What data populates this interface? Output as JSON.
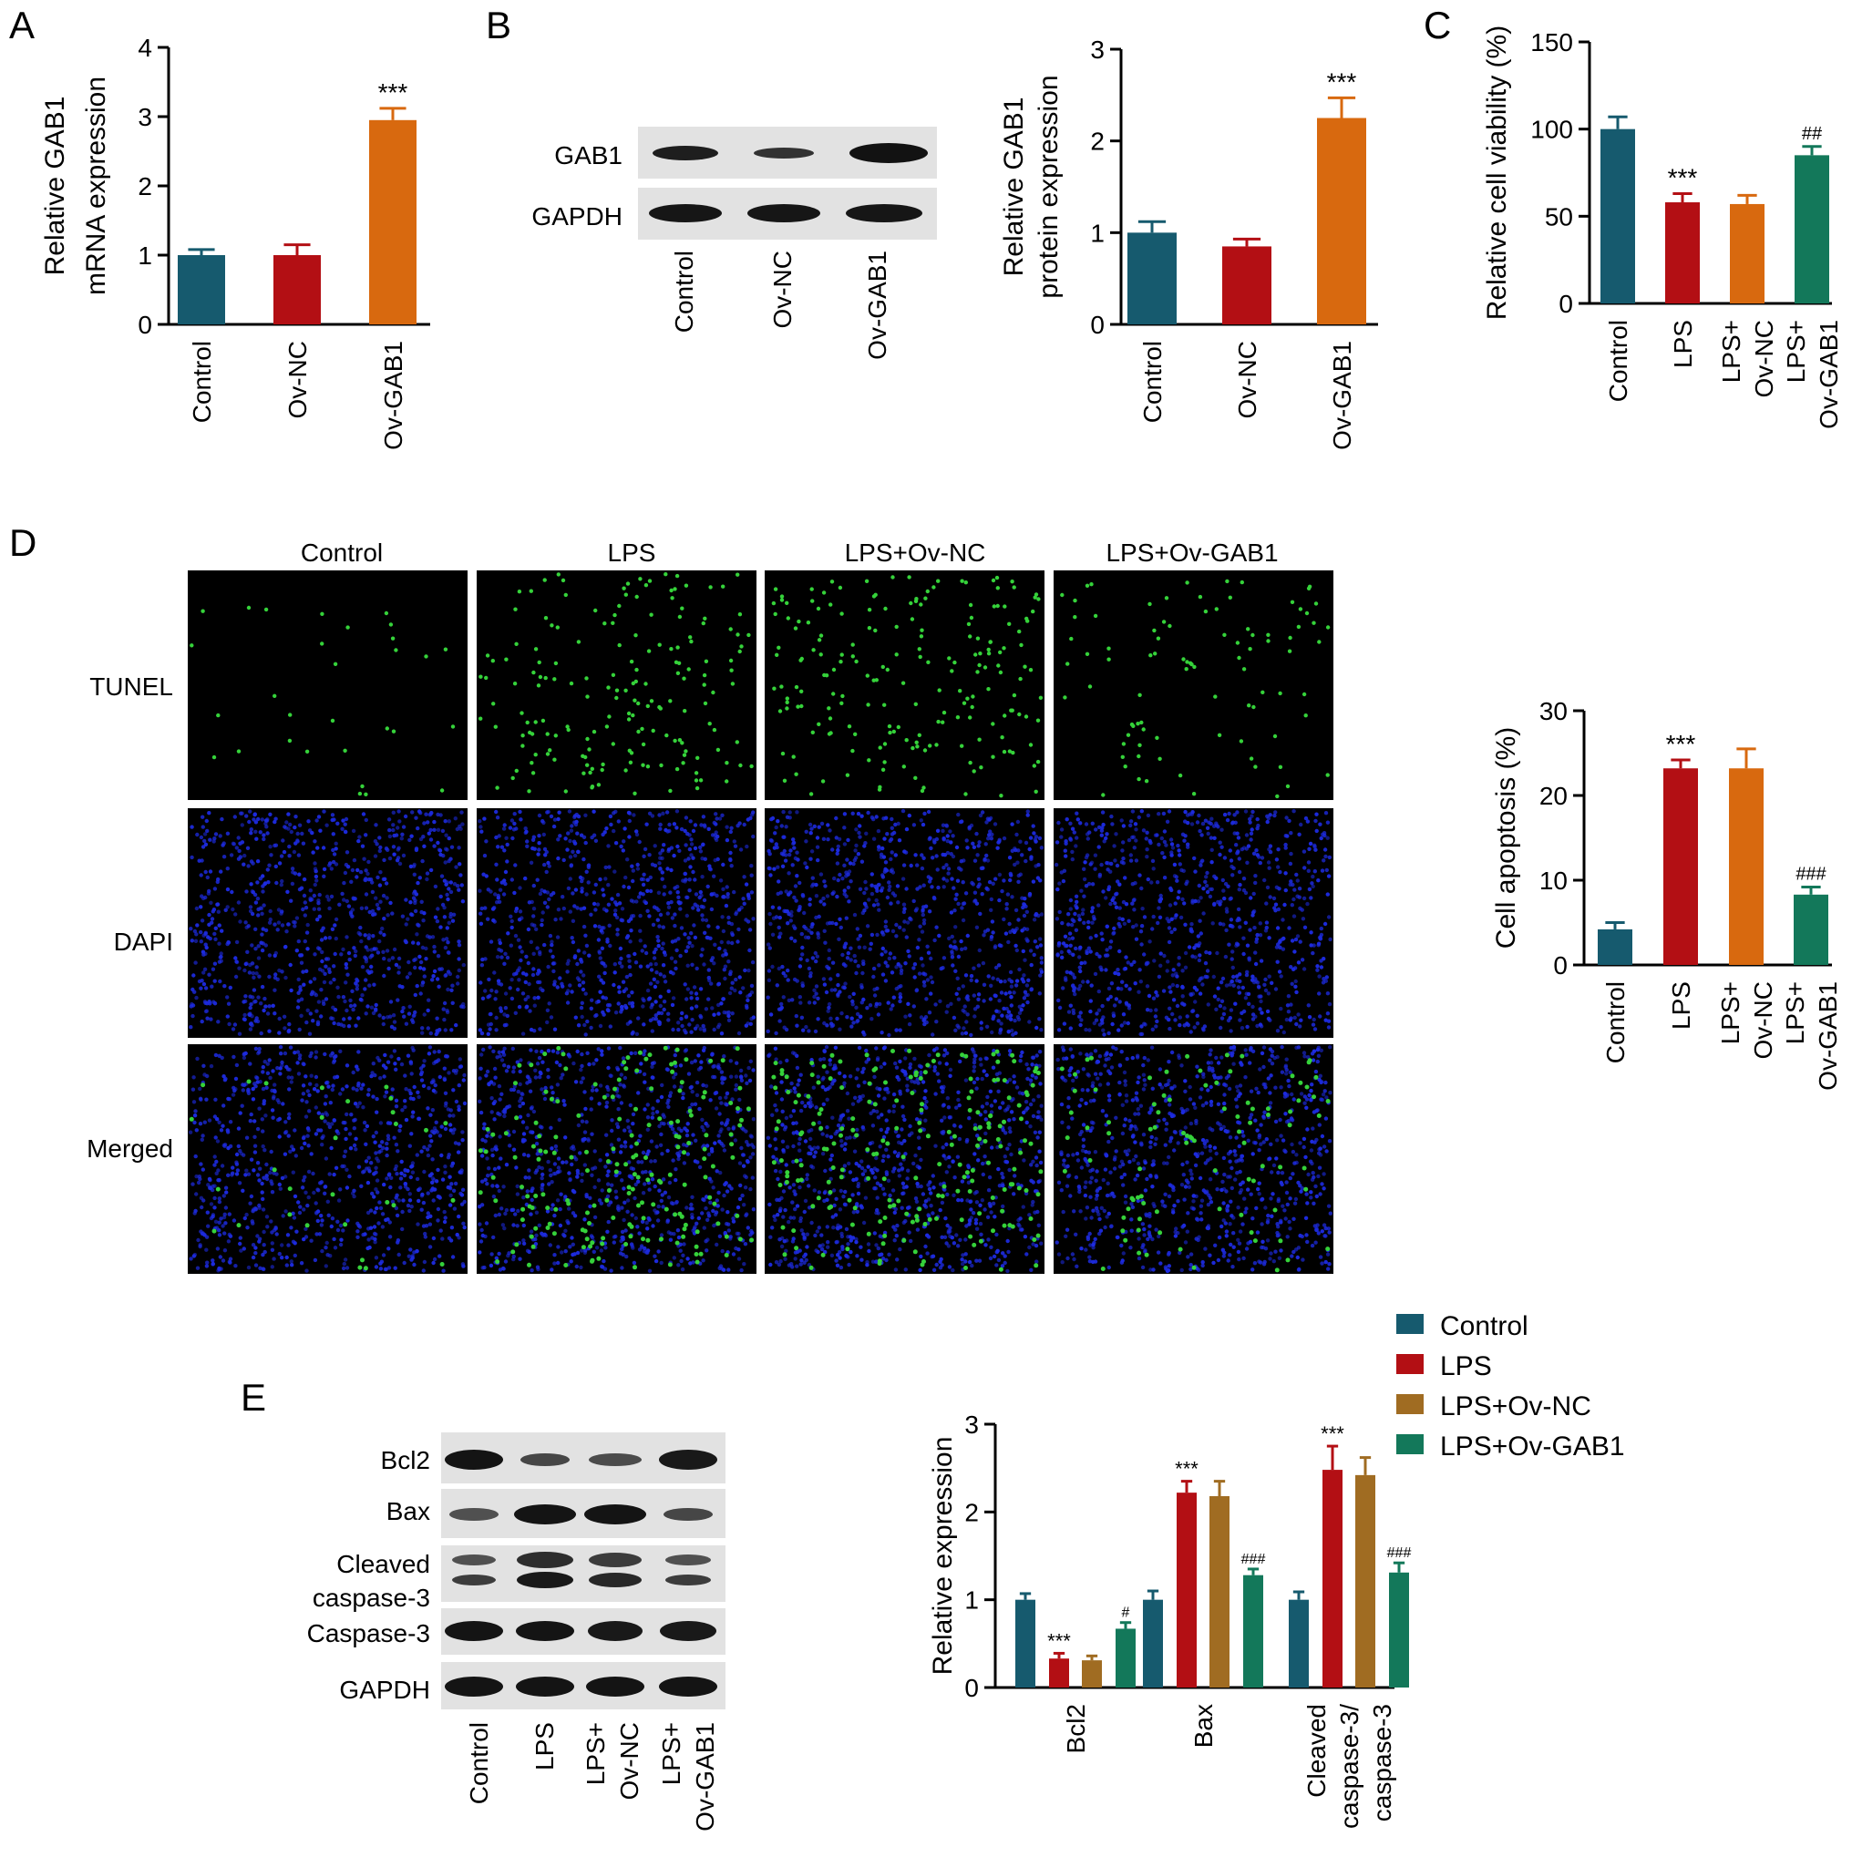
{
  "colors": {
    "control": "#165a6e",
    "lps": "#b30f14",
    "ovnc": "#d8690f",
    "lps_ovnc_e": "#a06c22",
    "ovgab1": "#13785a",
    "tunel_green": "#35d23a",
    "dapi_blue": "#1d2be0",
    "axis": "#000000"
  },
  "panels": {
    "A": {
      "letter": "A"
    },
    "B": {
      "letter": "B",
      "blot_labels": [
        "GAB1",
        "GAPDH"
      ],
      "blot_lanes": [
        "Control",
        "Ov-NC",
        "Ov-GAB1"
      ]
    },
    "C": {
      "letter": "C"
    },
    "D": {
      "letter": "D",
      "columns": [
        "Control",
        "LPS",
        "LPS+Ov-NC",
        "LPS+Ov-GAB1"
      ],
      "rows": [
        "TUNEL",
        "DAPI",
        "Merged"
      ]
    },
    "E": {
      "letter": "E",
      "blot_labels": [
        "Bcl2",
        "Bax",
        "Cleaved",
        "caspase-3",
        "Caspase-3",
        "GAPDH"
      ],
      "blot_lanes": [
        "Control",
        "LPS",
        "LPS+",
        "Ov-NC",
        "LPS+",
        "Ov-GAB1"
      ]
    }
  },
  "legend": {
    "items": [
      {
        "label": "Control",
        "color": "#165a6e"
      },
      {
        "label": "LPS",
        "color": "#b30f14"
      },
      {
        "label": "LPS+Ov-NC",
        "color": "#a06c22"
      },
      {
        "label": "LPS+Ov-GAB1",
        "color": "#13785a"
      }
    ]
  },
  "chart_data": [
    {
      "id": "A",
      "type": "bar",
      "ylabel": [
        "Relative GAB1",
        "mRNA expression"
      ],
      "ylim": [
        0,
        4
      ],
      "yticks": [
        0,
        1,
        2,
        3,
        4
      ],
      "categories": [
        "Control",
        "Ov-NC",
        "Ov-GAB1"
      ],
      "values": [
        1.0,
        1.0,
        2.95
      ],
      "errors": [
        0.08,
        0.15,
        0.17
      ],
      "annotations": [
        "",
        "",
        "***"
      ],
      "colors": [
        "#165a6e",
        "#b30f14",
        "#d8690f"
      ]
    },
    {
      "id": "B",
      "type": "bar",
      "ylabel": [
        "Relative GAB1",
        "protein expression"
      ],
      "ylim": [
        0,
        3
      ],
      "yticks": [
        0,
        1,
        2,
        3
      ],
      "categories": [
        "Control",
        "Ov-NC",
        "Ov-GAB1"
      ],
      "values": [
        1.0,
        0.85,
        2.25
      ],
      "errors": [
        0.12,
        0.08,
        0.22
      ],
      "annotations": [
        "",
        "",
        "***"
      ],
      "colors": [
        "#165a6e",
        "#b30f14",
        "#d8690f"
      ]
    },
    {
      "id": "C",
      "type": "bar",
      "ylabel": [
        "Relative cell viability (%)"
      ],
      "ylim": [
        0,
        150
      ],
      "yticks": [
        0,
        50,
        100,
        150
      ],
      "categories": [
        [
          "Control"
        ],
        [
          "LPS"
        ],
        [
          "LPS+",
          "Ov-NC"
        ],
        [
          "LPS+",
          "Ov-GAB1"
        ]
      ],
      "values": [
        100,
        58,
        57,
        85
      ],
      "errors": [
        7,
        5,
        5,
        5
      ],
      "annotations": [
        "",
        "***",
        "",
        "##"
      ],
      "colors": [
        "#165a6e",
        "#b30f14",
        "#d8690f",
        "#13785a"
      ]
    },
    {
      "id": "D",
      "type": "bar",
      "ylabel": [
        "Cell apoptosis (%)"
      ],
      "ylim": [
        0,
        30
      ],
      "yticks": [
        0,
        10,
        20,
        30
      ],
      "categories": [
        [
          "Control"
        ],
        [
          "LPS"
        ],
        [
          "LPS+",
          "Ov-NC"
        ],
        [
          "LPS+",
          "Ov-GAB1"
        ]
      ],
      "values": [
        4.2,
        23.2,
        23.2,
        8.3
      ],
      "errors": [
        0.8,
        1.0,
        2.3,
        0.9
      ],
      "annotations": [
        "",
        "***",
        "",
        "###"
      ],
      "colors": [
        "#165a6e",
        "#b30f14",
        "#d8690f",
        "#13785a"
      ]
    },
    {
      "id": "E",
      "type": "bar",
      "ylabel": [
        "Relative expression"
      ],
      "ylim": [
        0,
        3
      ],
      "yticks": [
        0,
        1,
        2,
        3
      ],
      "categories": [
        [
          "Bcl2"
        ],
        [
          "Bax"
        ],
        [
          "Cleaved",
          "caspase-3/",
          "caspase-3"
        ]
      ],
      "series": [
        {
          "name": "Control",
          "values": [
            1.0,
            1.0,
            1.0
          ],
          "errors": [
            0.07,
            0.1,
            0.09
          ],
          "annotations": [
            "",
            "",
            ""
          ]
        },
        {
          "name": "LPS",
          "values": [
            0.33,
            2.22,
            2.48
          ],
          "errors": [
            0.06,
            0.13,
            0.27
          ],
          "annotations": [
            "***",
            "***",
            "***"
          ]
        },
        {
          "name": "LPS+Ov-NC",
          "values": [
            0.31,
            2.18,
            2.42
          ],
          "errors": [
            0.05,
            0.17,
            0.2
          ],
          "annotations": [
            "",
            "",
            ""
          ]
        },
        {
          "name": "LPS+Ov-GAB1",
          "values": [
            0.67,
            1.28,
            1.31
          ],
          "errors": [
            0.07,
            0.07,
            0.11
          ],
          "annotations": [
            "#",
            "###",
            "###"
          ]
        }
      ],
      "colors": [
        "#165a6e",
        "#b30f14",
        "#a06c22",
        "#13785a"
      ]
    }
  ]
}
